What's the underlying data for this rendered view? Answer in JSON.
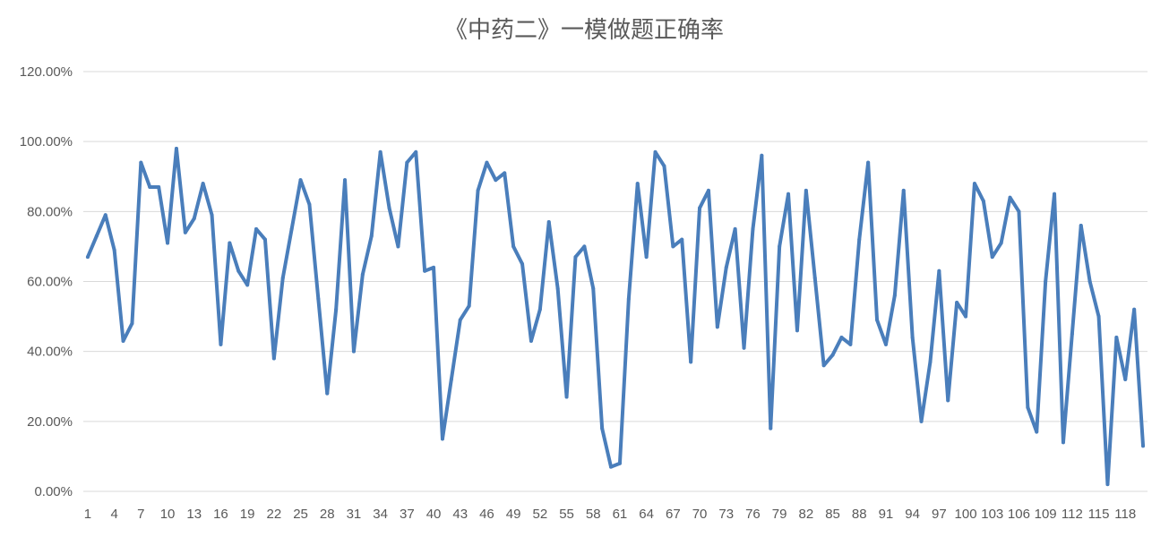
{
  "chart_data": {
    "type": "line",
    "title": "《中药二》一模做题正确率",
    "xlabel": "",
    "ylabel": "",
    "ylim": [
      0,
      1.2
    ],
    "y_ticks": [
      0,
      0.2,
      0.4,
      0.6,
      0.8,
      1.0,
      1.2
    ],
    "y_tick_labels": [
      "0.00%",
      "20.00%",
      "40.00%",
      "60.00%",
      "80.00%",
      "100.00%",
      "120.00%"
    ],
    "x_tick_labels": [
      "1",
      "4",
      "7",
      "10",
      "13",
      "16",
      "19",
      "22",
      "25",
      "28",
      "31",
      "34",
      "37",
      "40",
      "43",
      "46",
      "49",
      "52",
      "55",
      "58",
      "61",
      "64",
      "67",
      "70",
      "73",
      "76",
      "79",
      "82",
      "85",
      "88",
      "91",
      "94",
      "97",
      "100",
      "103",
      "106",
      "109",
      "112",
      "115",
      "118"
    ],
    "x_tick_positions": [
      1,
      4,
      7,
      10,
      13,
      16,
      19,
      22,
      25,
      28,
      31,
      34,
      37,
      40,
      43,
      46,
      49,
      52,
      55,
      58,
      61,
      64,
      67,
      70,
      73,
      76,
      79,
      82,
      85,
      88,
      91,
      94,
      97,
      100,
      103,
      106,
      109,
      112,
      115,
      118
    ],
    "grid": true,
    "legend": "none",
    "colors": {
      "series": "#4a7ebb",
      "grid": "#d9d9d9",
      "text": "#595959"
    },
    "series": [
      {
        "values": [
          0.67,
          0.73,
          0.79,
          0.69,
          0.43,
          0.48,
          0.94,
          0.87,
          0.87,
          0.71,
          0.98,
          0.74,
          0.78,
          0.88,
          0.79,
          0.42,
          0.71,
          0.63,
          0.59,
          0.75,
          0.72,
          0.38,
          0.61,
          0.75,
          0.89,
          0.82,
          0.55,
          0.28,
          0.52,
          0.89,
          0.4,
          0.62,
          0.73,
          0.97,
          0.81,
          0.7,
          0.94,
          0.97,
          0.63,
          0.64,
          0.15,
          0.32,
          0.49,
          0.53,
          0.86,
          0.94,
          0.89,
          0.91,
          0.7,
          0.65,
          0.43,
          0.52,
          0.77,
          0.58,
          0.27,
          0.67,
          0.7,
          0.58,
          0.18,
          0.07,
          0.08,
          0.55,
          0.88,
          0.67,
          0.97,
          0.93,
          0.7,
          0.72,
          0.37,
          0.81,
          0.86,
          0.47,
          0.64,
          0.75,
          0.41,
          0.75,
          0.96,
          0.18,
          0.7,
          0.85,
          0.46,
          0.86,
          0.61,
          0.36,
          0.39,
          0.44,
          0.42,
          0.72,
          0.94,
          0.49,
          0.42,
          0.56,
          0.86,
          0.44,
          0.2,
          0.37,
          0.63,
          0.26,
          0.54,
          0.5,
          0.88,
          0.83,
          0.67,
          0.71,
          0.84,
          0.8,
          0.24,
          0.17,
          0.6,
          0.85,
          0.14,
          0.45,
          0.76,
          0.6,
          0.5,
          0.02,
          0.44,
          0.32,
          0.52,
          0.13
        ]
      }
    ]
  }
}
